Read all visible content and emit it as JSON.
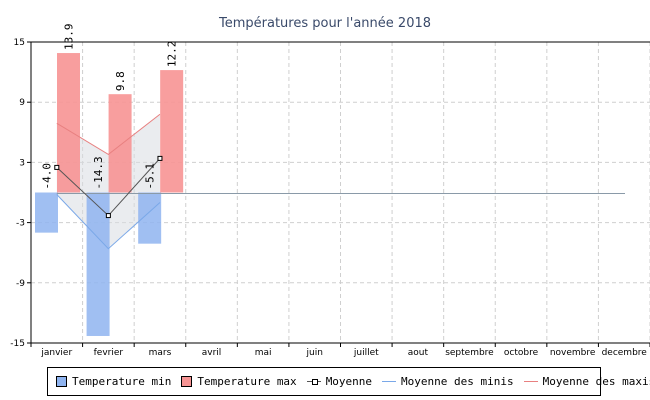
{
  "chart_data": {
    "type": "bar",
    "title": "Températures pour l'année 2018",
    "categories": [
      "janvier",
      "fevrier",
      "mars",
      "avril",
      "mai",
      "juin",
      "juillet",
      "aout",
      "septembre",
      "octobre",
      "novembre",
      "decembre"
    ],
    "ylim": [
      -15,
      15
    ],
    "yticks": [
      -15,
      -9,
      -3,
      3,
      9,
      15
    ],
    "grid": true,
    "legend_position": "bottom",
    "series": [
      {
        "name": "Temperature min",
        "kind": "bar",
        "color": "#8fb4f0",
        "values": [
          -4.0,
          -14.3,
          -5.1,
          null,
          null,
          null,
          null,
          null,
          null,
          null,
          null,
          null
        ],
        "labels": [
          "-4.0",
          "-14.3",
          "-5.1"
        ]
      },
      {
        "name": "Temperature max",
        "kind": "bar",
        "color": "#f79494",
        "values": [
          13.9,
          9.8,
          12.2,
          null,
          null,
          null,
          null,
          null,
          null,
          null,
          null,
          null
        ],
        "labels": [
          "13.9",
          "9.8",
          "12.2"
        ]
      },
      {
        "name": "Moyenne",
        "kind": "line",
        "color": "#555555",
        "marker": "square",
        "values": [
          2.5,
          -2.3,
          3.4,
          null,
          null,
          null,
          null,
          null,
          null,
          null,
          null,
          null
        ]
      },
      {
        "name": "Moyenne des minis",
        "kind": "line",
        "color": "#7aa8e8",
        "values": [
          -0.2,
          -5.6,
          -1.0,
          null,
          null,
          null,
          null,
          null,
          null,
          null,
          null,
          null
        ]
      },
      {
        "name": "Moyenne des maxis",
        "kind": "line",
        "color": "#e88080",
        "values": [
          6.9,
          3.8,
          7.8,
          null,
          null,
          null,
          null,
          null,
          null,
          null,
          null,
          null
        ]
      }
    ],
    "reference_line": {
      "value": -0.1,
      "color": "#8a9aa8"
    }
  }
}
